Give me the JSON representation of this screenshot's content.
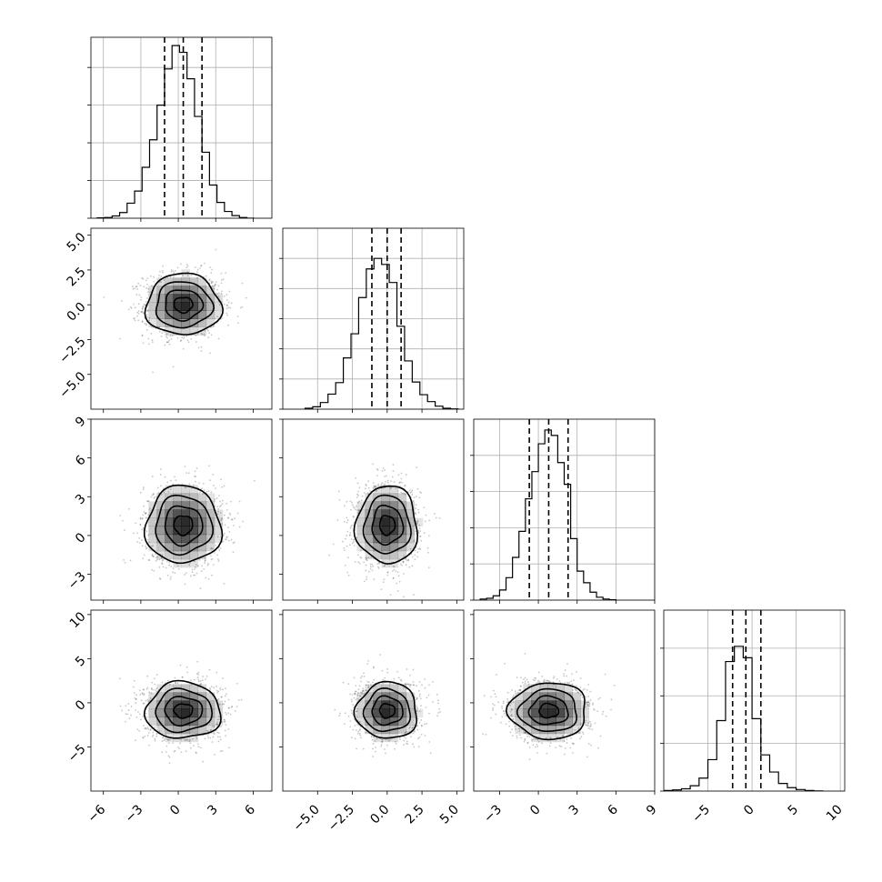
{
  "chart_data": {
    "type": "corner",
    "title": "",
    "parameters": [
      {
        "index": 0,
        "range": [
          -7,
          7.5
        ],
        "ticks": [
          -6,
          -3,
          0,
          3,
          6
        ],
        "tick_labels": [
          "−6",
          "−3",
          "0",
          "3",
          "6"
        ],
        "quantiles": [
          -1.1,
          0.4,
          1.9
        ],
        "hist_bin_edges": [
          -6.5,
          -5.9,
          -5.3,
          -4.7,
          -4.1,
          -3.5,
          -2.9,
          -2.3,
          -1.7,
          -1.1,
          -0.5,
          0.1,
          0.7,
          1.3,
          1.9,
          2.5,
          3.1,
          3.7,
          4.3,
          4.9,
          5.5,
          6.1
        ],
        "hist_counts": [
          1,
          2,
          6,
          15,
          40,
          72,
          135,
          208,
          300,
          396,
          458,
          440,
          370,
          270,
          175,
          88,
          42,
          18,
          7,
          2,
          0
        ],
        "hist_ticks": [
          0,
          100,
          200,
          300,
          400
        ],
        "hist_ylim": [
          0,
          480
        ]
      },
      {
        "index": 1,
        "range": [
          -7.5,
          5.5
        ],
        "ticks": [
          -5.0,
          -2.5,
          0.0,
          2.5,
          5.0
        ],
        "tick_labels": [
          "−5.0",
          "−2.5",
          "0.0",
          "2.5",
          "5.0"
        ],
        "quantiles": [
          -1.1,
          0.0,
          1.0
        ],
        "hist_bin_edges": [
          -5.9,
          -5.35,
          -4.8,
          -4.25,
          -3.7,
          -3.15,
          -2.6,
          -2.05,
          -1.5,
          -0.95,
          -0.4,
          0.15,
          0.7,
          1.25,
          1.8,
          2.35,
          2.9,
          3.45,
          4.0,
          4.55,
          5.1
        ],
        "hist_counts": [
          3,
          8,
          22,
          50,
          88,
          170,
          250,
          370,
          465,
          500,
          480,
          420,
          275,
          160,
          90,
          48,
          25,
          10,
          3,
          1
        ],
        "hist_ticks": [
          0,
          100,
          200,
          300,
          400,
          500
        ],
        "hist_ylim": [
          0,
          600
        ]
      },
      {
        "index": 2,
        "range": [
          -5,
          9
        ],
        "ticks": [
          -3,
          0,
          3,
          6,
          9
        ],
        "tick_labels": [
          "−3",
          "0",
          "3",
          "6",
          "9"
        ],
        "quantiles": [
          -0.7,
          0.8,
          2.3
        ],
        "hist_bin_edges": [
          -4.5,
          -4.0,
          -3.5,
          -3.0,
          -2.5,
          -2.0,
          -1.5,
          -1.0,
          -0.5,
          0.0,
          0.5,
          1.0,
          1.5,
          2.0,
          2.5,
          3.0,
          3.5,
          4.0,
          4.5,
          5.0,
          5.5,
          6.0
        ],
        "hist_counts": [
          3,
          5,
          12,
          28,
          62,
          118,
          190,
          280,
          355,
          432,
          470,
          455,
          380,
          320,
          170,
          80,
          48,
          22,
          8,
          3,
          1
        ],
        "hist_ticks": [
          0,
          100,
          200,
          300,
          400
        ],
        "hist_ylim": [
          0,
          500
        ]
      },
      {
        "index": 3,
        "range": [
          -10,
          10.5
        ],
        "ticks": [
          -5,
          0,
          5,
          10
        ],
        "tick_labels": [
          "−5",
          "0",
          "5",
          "10"
        ],
        "quantiles": [
          -2.2,
          -0.7,
          1.0
        ],
        "hist_bin_edges": [
          -10,
          -9,
          -8,
          -7,
          -6,
          -5,
          -4,
          -3,
          -2,
          -1,
          0,
          1,
          2,
          3,
          4,
          5,
          6,
          7,
          8
        ],
        "hist_counts": [
          3,
          6,
          12,
          28,
          68,
          165,
          370,
          680,
          760,
          700,
          380,
          190,
          100,
          40,
          18,
          8,
          3,
          1
        ],
        "hist_ticks": [
          0,
          250,
          500,
          750
        ],
        "hist_ylim": [
          0,
          950
        ]
      }
    ],
    "pairs": [
      {
        "x": 0,
        "y": 1,
        "mean": [
          0.4,
          0.0
        ],
        "sigma": [
          1.5,
          1.1
        ],
        "rho": 0.0
      },
      {
        "x": 0,
        "y": 2,
        "mean": [
          0.4,
          0.8
        ],
        "sigma": [
          1.5,
          1.5
        ],
        "rho": 0.0
      },
      {
        "x": 1,
        "y": 2,
        "mean": [
          0.0,
          0.8
        ],
        "sigma": [
          1.1,
          1.5
        ],
        "rho": 0.0
      },
      {
        "x": 0,
        "y": 3,
        "mean": [
          0.4,
          -0.9
        ],
        "sigma": [
          1.5,
          1.6
        ],
        "rho": 0.0
      },
      {
        "x": 1,
        "y": 3,
        "mean": [
          0.0,
          -0.9
        ],
        "sigma": [
          1.1,
          1.6
        ],
        "rho": 0.0
      },
      {
        "x": 2,
        "y": 3,
        "mean": [
          0.8,
          -0.9
        ],
        "sigma": [
          1.5,
          1.6
        ],
        "rho": 0.0
      }
    ],
    "contour_levels_sigma": [
      0.5,
      1.0,
      1.5,
      2.0
    ],
    "grid": true,
    "legend": "none"
  }
}
